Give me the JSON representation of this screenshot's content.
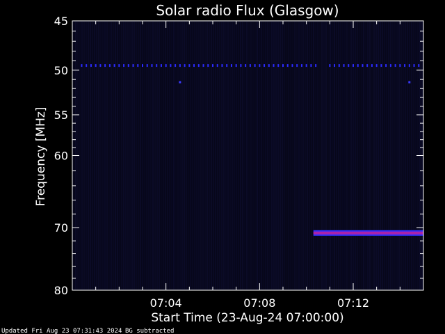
{
  "chart_data": {
    "type": "heatmap",
    "title": "Solar radio Flux (Glasgow)",
    "ylabel": "Frequency [MHz]",
    "xlabel": "Start Time (23-Aug-24 07:00:00)",
    "y_ticks": [
      45,
      50,
      55,
      60,
      70,
      80
    ],
    "ylim": [
      45,
      80
    ],
    "y_scale": "log",
    "y_inverted": true,
    "x_ticks": [
      "07:04",
      "07:08",
      "07:12"
    ],
    "x_tick_minutes": [
      4,
      8,
      12
    ],
    "xlim_minutes": [
      0,
      15
    ],
    "features": [
      {
        "kind": "dotted-band",
        "frequency_mhz": 49.5,
        "start_minute": 0.4,
        "end_minute": 14.8,
        "color": "#2b2bff"
      },
      {
        "kind": "dot",
        "frequency_mhz": 51.3,
        "minute": 4.6,
        "color": "#3a3aff"
      },
      {
        "kind": "dot",
        "frequency_mhz": 51.3,
        "minute": 14.4,
        "color": "#3a3aff"
      },
      {
        "kind": "strong-band",
        "frequency_mhz": 70.8,
        "start_minute": 10.3,
        "end_minute": 15.0,
        "core_color": "#aa22aa",
        "edge_color": "#3030ff"
      }
    ],
    "background_color": "#07071a",
    "grid": false
  },
  "footer": {
    "updated": "Updated Fri Aug 23 07:31:43 2024",
    "note": "BG subtracted"
  }
}
